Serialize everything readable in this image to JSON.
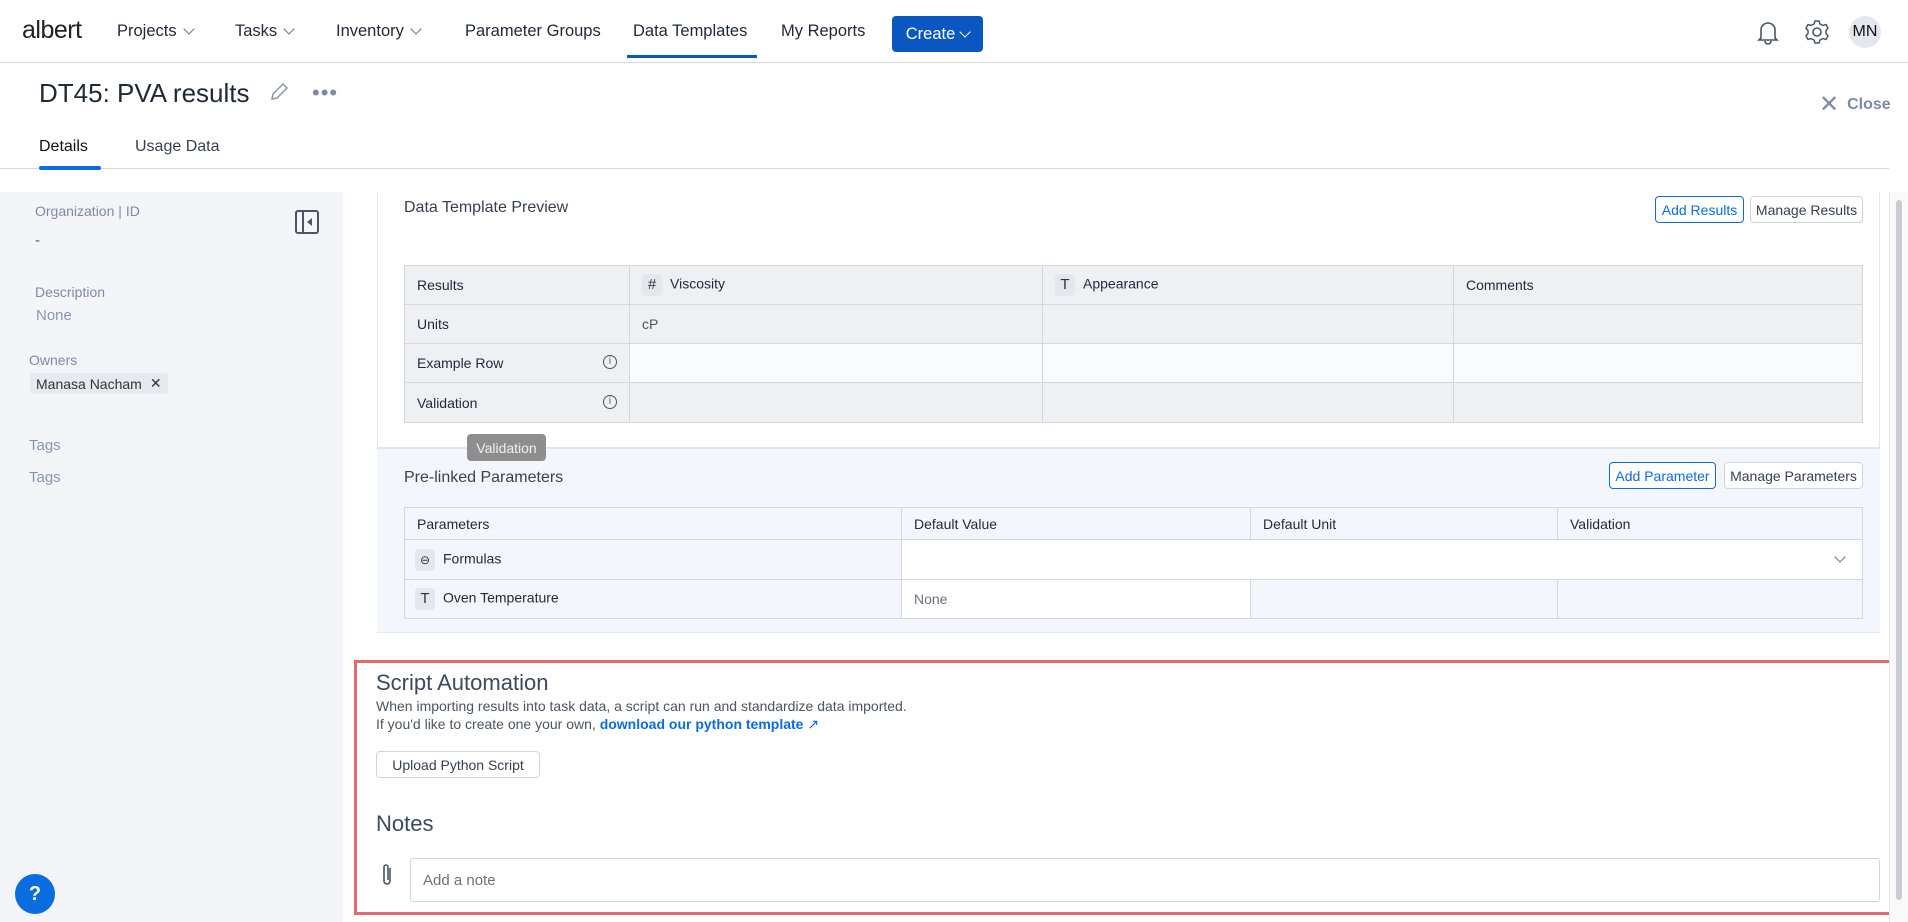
{
  "nav": {
    "logo": "albert",
    "items": [
      "Projects",
      "Tasks",
      "Inventory",
      "Parameter Groups",
      "Data Templates",
      "My Reports"
    ],
    "active": "Data Templates",
    "create": "Create",
    "avatar": "MN"
  },
  "header": {
    "title": "DT45: PVA results",
    "close": "Close",
    "tabs": [
      "Details",
      "Usage Data"
    ],
    "active_tab": "Details"
  },
  "sidebar": {
    "org_label": "Organization",
    "id_label": "ID",
    "org_value": "-",
    "desc_label": "Description",
    "desc_value": "None",
    "owners_label": "Owners",
    "owner": "Manasa Nacham",
    "tags_label": "Tags",
    "tags_value": "Tags"
  },
  "preview": {
    "title": "Data Template Preview",
    "add": "Add Results",
    "manage": "Manage Results",
    "columns": [
      "Results",
      "Viscosity",
      "Appearance",
      "Comments"
    ],
    "column_types": [
      "",
      "#",
      "T",
      ""
    ],
    "rows": [
      {
        "label": "Units",
        "values": [
          "cP",
          "",
          ""
        ]
      },
      {
        "label": "Example Row",
        "values": [
          "",
          "",
          ""
        ]
      },
      {
        "label": "Validation",
        "values": [
          "",
          "",
          ""
        ]
      }
    ],
    "tooltip": "Validation"
  },
  "params": {
    "title": "Pre-linked Parameters",
    "add": "Add Parameter",
    "manage": "Manage Parameters",
    "columns": [
      "Parameters",
      "Default Value",
      "Default Unit",
      "Validation"
    ],
    "rows": [
      {
        "name": "Formulas",
        "icon": "link-icon",
        "value": ""
      },
      {
        "name": "Oven Temperature",
        "icon": "text-icon",
        "value": "None"
      }
    ]
  },
  "script": {
    "title": "Script Automation",
    "line1": "When importing results into task data, a script can run and standardize data imported.",
    "line2": "If you'd like to create one your own, ",
    "link": "download our python template",
    "upload": "Upload Python Script"
  },
  "notes": {
    "title": "Notes",
    "placeholder": "Add a note"
  },
  "help": "?",
  "colors": {
    "accent": "#0b57c2",
    "highlight_border": "#e86a6a"
  }
}
